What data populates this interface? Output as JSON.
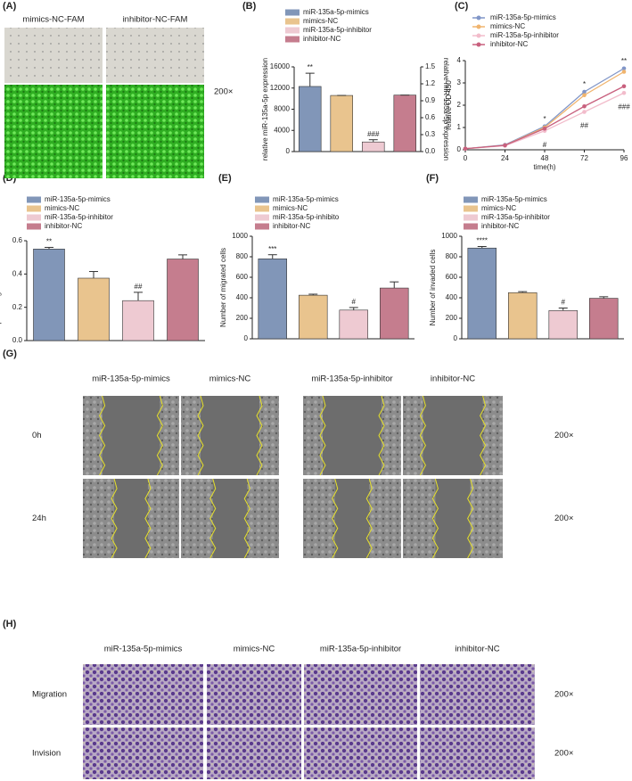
{
  "chart_data": [
    {
      "type": "bar",
      "panel_label": "(B)",
      "ylabel": "relative miR-135a-5p expression",
      "y2label": "relative miR-135a-5p expression",
      "ylim": [
        0,
        16000
      ],
      "yticks": [
        0,
        4000,
        8000,
        12000,
        16000
      ],
      "y2lim": [
        0,
        1.5
      ],
      "y2ticks": [
        {
          "value": 0,
          "label": "0.0"
        },
        0.3,
        0.6,
        0.9,
        1.2,
        1.5
      ],
      "series": [
        {
          "name": "miR-135a-5p-mimics",
          "color": "#8196b8",
          "values": [
            12300
          ],
          "errors": [
            2500
          ],
          "annotations": [
            "**"
          ]
        },
        {
          "name": "mimics-NC",
          "color": "#e9c48e",
          "values": [
            10600
          ],
          "errors": [
            0
          ]
        },
        {
          "name": "miR-135a-5p-inhibitor",
          "color": "#eecad2",
          "values": [
            0.17
          ],
          "errors": [
            0.04
          ],
          "axis": "y2",
          "annotations": [
            "###"
          ]
        },
        {
          "name": "inhibitor-NC",
          "color": "#c57d8e",
          "values": [
            1.0
          ],
          "errors": [
            0
          ],
          "axis": "y2"
        }
      ]
    },
    {
      "type": "line",
      "panel_label": "(C)",
      "xlabel": "time(h)",
      "ylabel": "relative OD 450",
      "x": [
        0,
        24,
        48,
        72,
        96
      ],
      "xlim": [
        0,
        96
      ],
      "xticks": [
        0,
        24,
        48,
        72,
        96
      ],
      "ylim": [
        0,
        4
      ],
      "yticks": [
        0,
        1,
        2,
        3,
        4
      ],
      "legend": "top-left",
      "series": [
        {
          "name": "miR-135a-5p-mimics",
          "color": "#8196c8",
          "values": [
            0.05,
            0.22,
            1.05,
            2.6,
            3.65
          ],
          "annotations": [
            null,
            null,
            "*",
            "*",
            "**"
          ]
        },
        {
          "name": "mimics-NC",
          "color": "#f0b46e",
          "values": [
            0.05,
            0.2,
            1.0,
            2.45,
            3.5
          ]
        },
        {
          "name": "miR-135a-5p-inhibitor",
          "color": "#f2bccb",
          "values": [
            0.05,
            0.18,
            0.85,
            1.7,
            2.55
          ],
          "annotations": [
            null,
            null,
            "#",
            "##",
            "###"
          ]
        },
        {
          "name": "inhibitor-NC",
          "color": "#c8607e",
          "values": [
            0.05,
            0.2,
            0.95,
            1.95,
            2.85
          ]
        }
      ]
    },
    {
      "type": "bar",
      "panel_label": "(D)",
      "ylabel": "relative percentage of wound closure",
      "ylim": [
        0,
        0.6
      ],
      "yticks": [
        {
          "value": 0,
          "label": "0.0"
        },
        0.2,
        0.4,
        0.6
      ],
      "series": [
        {
          "name": "miR-135a-5p-mimics",
          "color": "#8196b8",
          "values": [
            0.55
          ],
          "errors": [
            0.01
          ],
          "annotations": [
            "**"
          ]
        },
        {
          "name": "mimics-NC",
          "color": "#e9c48e",
          "values": [
            0.375
          ],
          "errors": [
            0.04
          ]
        },
        {
          "name": "miR-135a-5p-inhibitor",
          "color": "#eecad2",
          "values": [
            0.24
          ],
          "errors": [
            0.05
          ],
          "annotations": [
            "##"
          ]
        },
        {
          "name": "inhibitor-NC",
          "color": "#c57d8e",
          "values": [
            0.49
          ],
          "errors": [
            0.025
          ]
        }
      ]
    },
    {
      "type": "bar",
      "panel_label": "(E)",
      "ylabel": "Number of migrated cells",
      "ylim": [
        0,
        1000
      ],
      "yticks": [
        0,
        200,
        400,
        600,
        800,
        1000
      ],
      "series": [
        {
          "name": "miR-135a-5p-mimics",
          "color": "#8196b8",
          "values": [
            780
          ],
          "errors": [
            40
          ],
          "annotations": [
            "***"
          ]
        },
        {
          "name": "mimics-NC",
          "color": "#e9c48e",
          "values": [
            425
          ],
          "errors": [
            10
          ]
        },
        {
          "name": "miR-135a-5p-inhibito",
          "color": "#eecad2",
          "values": [
            280
          ],
          "errors": [
            25
          ],
          "annotations": [
            "#"
          ]
        },
        {
          "name": "inhibitor-NC",
          "color": "#c57d8e",
          "values": [
            495
          ],
          "errors": [
            60
          ]
        }
      ]
    },
    {
      "type": "bar",
      "panel_label": "(F)",
      "ylabel": "Number of invaded cells",
      "ylim": [
        0,
        1000
      ],
      "yticks": [
        0,
        200,
        400,
        600,
        800,
        1000
      ],
      "series": [
        {
          "name": "miR-135a-5p-mimics",
          "color": "#8196b8",
          "values": [
            885
          ],
          "errors": [
            15
          ],
          "annotations": [
            "****"
          ]
        },
        {
          "name": "mimics-NC",
          "color": "#e9c48e",
          "values": [
            450
          ],
          "errors": [
            10
          ]
        },
        {
          "name": "miR-135a-5p-inhibitor",
          "color": "#eecad2",
          "values": [
            275
          ],
          "errors": [
            25
          ],
          "annotations": [
            "#"
          ]
        },
        {
          "name": "inhibitor-NC",
          "color": "#c57d8e",
          "values": [
            395
          ],
          "errors": [
            15
          ]
        }
      ]
    }
  ],
  "panel_a": {
    "label": "(A)",
    "columns": [
      "mimics-NC-FAM",
      "inhibitor-NC-FAM"
    ],
    "magnification": "200×"
  },
  "panel_g": {
    "label": "(G)",
    "columns": [
      "miR-135a-5p-mimics",
      "mimics-NC",
      "miR-135a-5p-inhibitor",
      "inhibitor-NC"
    ],
    "rows": [
      "0h",
      "24h"
    ],
    "magnification": "200×"
  },
  "panel_h": {
    "label": "(H)",
    "columns": [
      "miR-135a-5p-mimics",
      "mimics-NC",
      "miR-135a-5p-inhibitor",
      "inhibitor-NC"
    ],
    "rows": [
      "Migration",
      "Invision"
    ],
    "magnification": "200×"
  }
}
